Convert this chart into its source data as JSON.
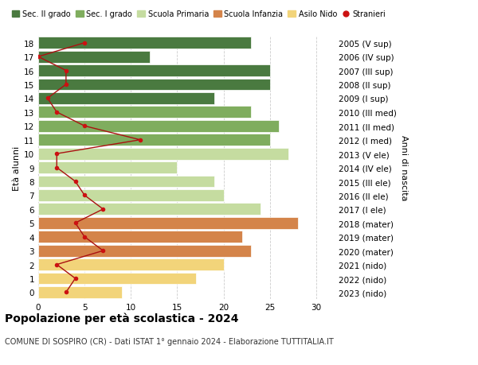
{
  "ages": [
    18,
    17,
    16,
    15,
    14,
    13,
    12,
    11,
    10,
    9,
    8,
    7,
    6,
    5,
    4,
    3,
    2,
    1,
    0
  ],
  "right_labels": [
    "2005 (V sup)",
    "2006 (IV sup)",
    "2007 (III sup)",
    "2008 (II sup)",
    "2009 (I sup)",
    "2010 (III med)",
    "2011 (II med)",
    "2012 (I med)",
    "2013 (V ele)",
    "2014 (IV ele)",
    "2015 (III ele)",
    "2016 (II ele)",
    "2017 (I ele)",
    "2018 (mater)",
    "2019 (mater)",
    "2020 (mater)",
    "2021 (nido)",
    "2022 (nido)",
    "2023 (nido)"
  ],
  "bar_values": [
    23,
    12,
    25,
    25,
    19,
    23,
    26,
    25,
    27,
    15,
    19,
    20,
    24,
    28,
    22,
    23,
    20,
    17,
    9
  ],
  "bar_colors": [
    "#4a7a40",
    "#4a7a40",
    "#4a7a40",
    "#4a7a40",
    "#4a7a40",
    "#7fad5e",
    "#7fad5e",
    "#7fad5e",
    "#c5dca0",
    "#c5dca0",
    "#c5dca0",
    "#c5dca0",
    "#c5dca0",
    "#d4844a",
    "#d4844a",
    "#d4844a",
    "#f2d47a",
    "#f2d47a",
    "#f2d47a"
  ],
  "stranieri_values": [
    5,
    0,
    3,
    3,
    1,
    2,
    5,
    11,
    2,
    2,
    4,
    5,
    7,
    4,
    5,
    7,
    2,
    4,
    3
  ],
  "legend_labels": [
    "Sec. II grado",
    "Sec. I grado",
    "Scuola Primaria",
    "Scuola Infanzia",
    "Asilo Nido",
    "Stranieri"
  ],
  "legend_colors": [
    "#4a7a40",
    "#7fad5e",
    "#c5dca0",
    "#d4844a",
    "#f2d47a",
    "#cc2222"
  ],
  "title": "Popolazione per età scolastica - 2024",
  "subtitle": "COMUNE DI SOSPIRO (CR) - Dati ISTAT 1° gennaio 2024 - Elaborazione TUTTITALIA.IT",
  "ylabel_left": "Età alunni",
  "ylabel_right": "Anni di nascita",
  "xlim": [
    0,
    32
  ],
  "ylim": [
    -0.5,
    18.5
  ],
  "bg_color": "#ffffff",
  "grid_color": "#cccccc",
  "xticks": [
    0,
    5,
    10,
    15,
    20,
    25,
    30
  ]
}
